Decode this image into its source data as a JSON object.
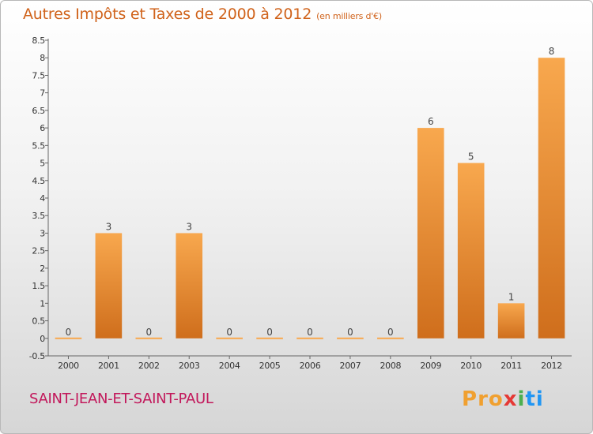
{
  "chart_data": {
    "type": "bar",
    "title": "Autres Impôts et Taxes de 2000 à 2012",
    "unit_label": "(en milliers d'€)",
    "categories": [
      "2000",
      "2001",
      "2002",
      "2003",
      "2004",
      "2005",
      "2006",
      "2007",
      "2008",
      "2009",
      "2010",
      "2011",
      "2012"
    ],
    "values": [
      0,
      3,
      0,
      3,
      0,
      0,
      0,
      0,
      0,
      6,
      5,
      1,
      8
    ],
    "value_labels": [
      "0",
      "3",
      "0",
      "3",
      "0",
      "0",
      "0",
      "0",
      "0",
      "6",
      "5",
      "1",
      "8"
    ],
    "ylim": [
      -0.5,
      8.5
    ],
    "yticks": [
      "-0.5",
      "0",
      "0.5",
      "1",
      "1.5",
      "2",
      "2.5",
      "3",
      "3.5",
      "4",
      "4.5",
      "5",
      "5.5",
      "6",
      "6.5",
      "7",
      "7.5",
      "8",
      "8.5"
    ],
    "ytick_values": [
      -0.5,
      0,
      0.5,
      1,
      1.5,
      2,
      2.5,
      3,
      3.5,
      4,
      4.5,
      5,
      5.5,
      6,
      6.5,
      7,
      7.5,
      8,
      8.5
    ],
    "xlabel": "",
    "ylabel": "",
    "grid": false,
    "legend": "none",
    "colors": {
      "bar_top": "#f8a84e",
      "bar_bottom": "#cf6e1c",
      "title": "#d0621a",
      "axis": "#555555"
    }
  },
  "footer": {
    "place": "SAINT-JEAN-ET-SAINT-PAUL",
    "logo_letters": [
      "P",
      "r",
      "o",
      "x",
      "i",
      "t",
      "i"
    ],
    "logo_colors": [
      "#f0a030",
      "#f0a030",
      "#f0a030",
      "#e53935",
      "#4caf50",
      "#2196f3",
      "#2196f3"
    ]
  }
}
